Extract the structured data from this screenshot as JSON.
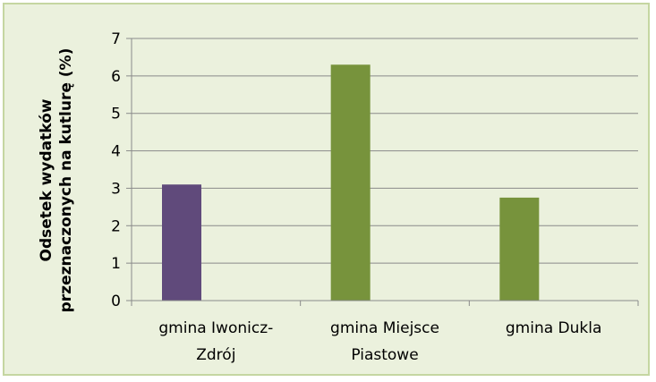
{
  "chart_data": {
    "type": "bar",
    "title": "",
    "xlabel": "",
    "ylabel_lines": [
      "Odsetek wydatków",
      "przeznaczonych na kutlurę (%)"
    ],
    "categories": [
      [
        "gmina Iwonicz-",
        "Zdrój"
      ],
      [
        "gmina Miejsce",
        "Piastowe"
      ],
      [
        "gmina Dukla"
      ]
    ],
    "values": [
      3.1,
      6.3,
      2.75
    ],
    "bar_colors": [
      "#604a7b",
      "#77933c",
      "#77933c"
    ],
    "ylim": [
      0,
      7
    ],
    "yticks": [
      0,
      1,
      2,
      3,
      4,
      5,
      6,
      7
    ],
    "grid": true,
    "legend": "none",
    "background_color": "#ebf1dd",
    "border_color": "#c5d6a1",
    "gridline_color": "#8a8a8a"
  }
}
